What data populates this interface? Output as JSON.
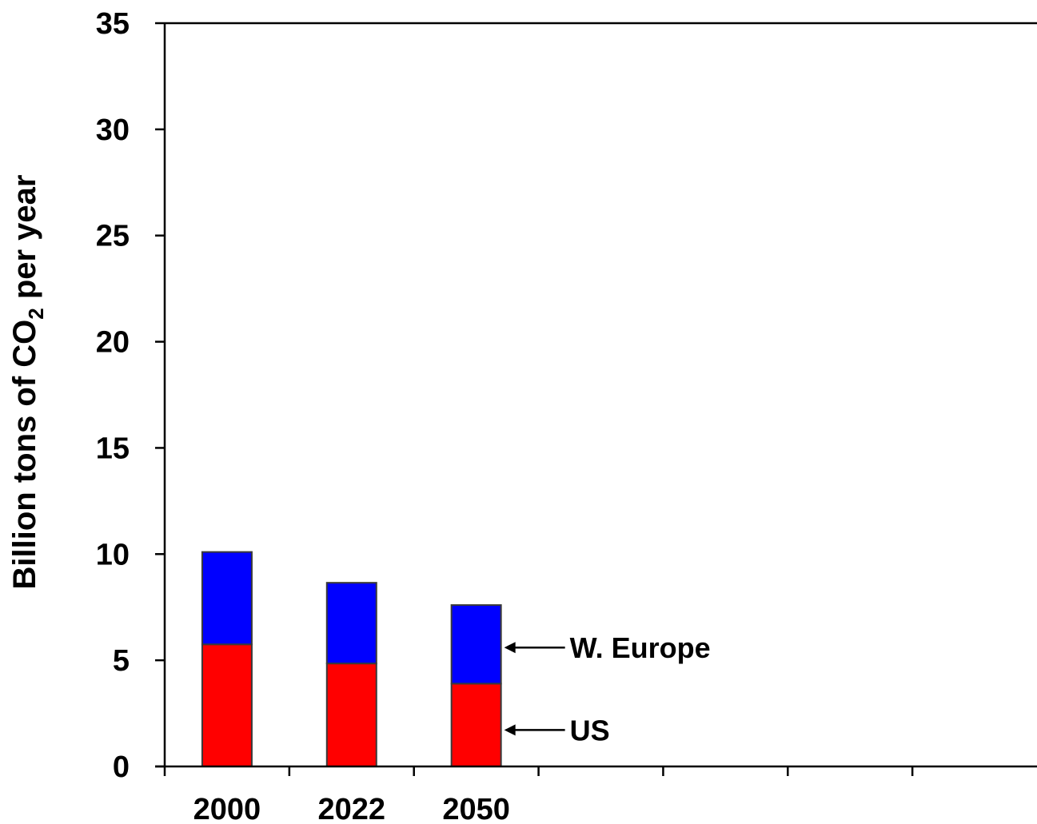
{
  "chart_data": {
    "type": "bar",
    "stacked": true,
    "categories": [
      "2000",
      "2022",
      "2050"
    ],
    "series": [
      {
        "name": "US",
        "values": [
          5.75,
          4.85,
          3.9
        ],
        "color": "#ff0000"
      },
      {
        "name": "W. Europe",
        "values": [
          4.35,
          3.8,
          3.7
        ],
        "color": "#0000ff"
      }
    ],
    "category_slots": 7,
    "ylim": [
      0,
      35
    ],
    "yticks": [
      "0",
      "5",
      "10",
      "15",
      "20",
      "25",
      "30",
      "35"
    ],
    "ytick_values": [
      0,
      5,
      10,
      15,
      20,
      25,
      30,
      35
    ],
    "ylabel": {
      "prefix": "Billion tons of CO",
      "subscript": "2",
      "suffix": " per year"
    },
    "xlabel": "",
    "title": "",
    "grid": false,
    "legend": "none",
    "annotations": [
      {
        "text": "W. Europe",
        "series": "W. Europe",
        "category": "2050",
        "arrow": true
      },
      {
        "text": "US",
        "series": "US",
        "category": "2050",
        "arrow": true
      }
    ]
  }
}
